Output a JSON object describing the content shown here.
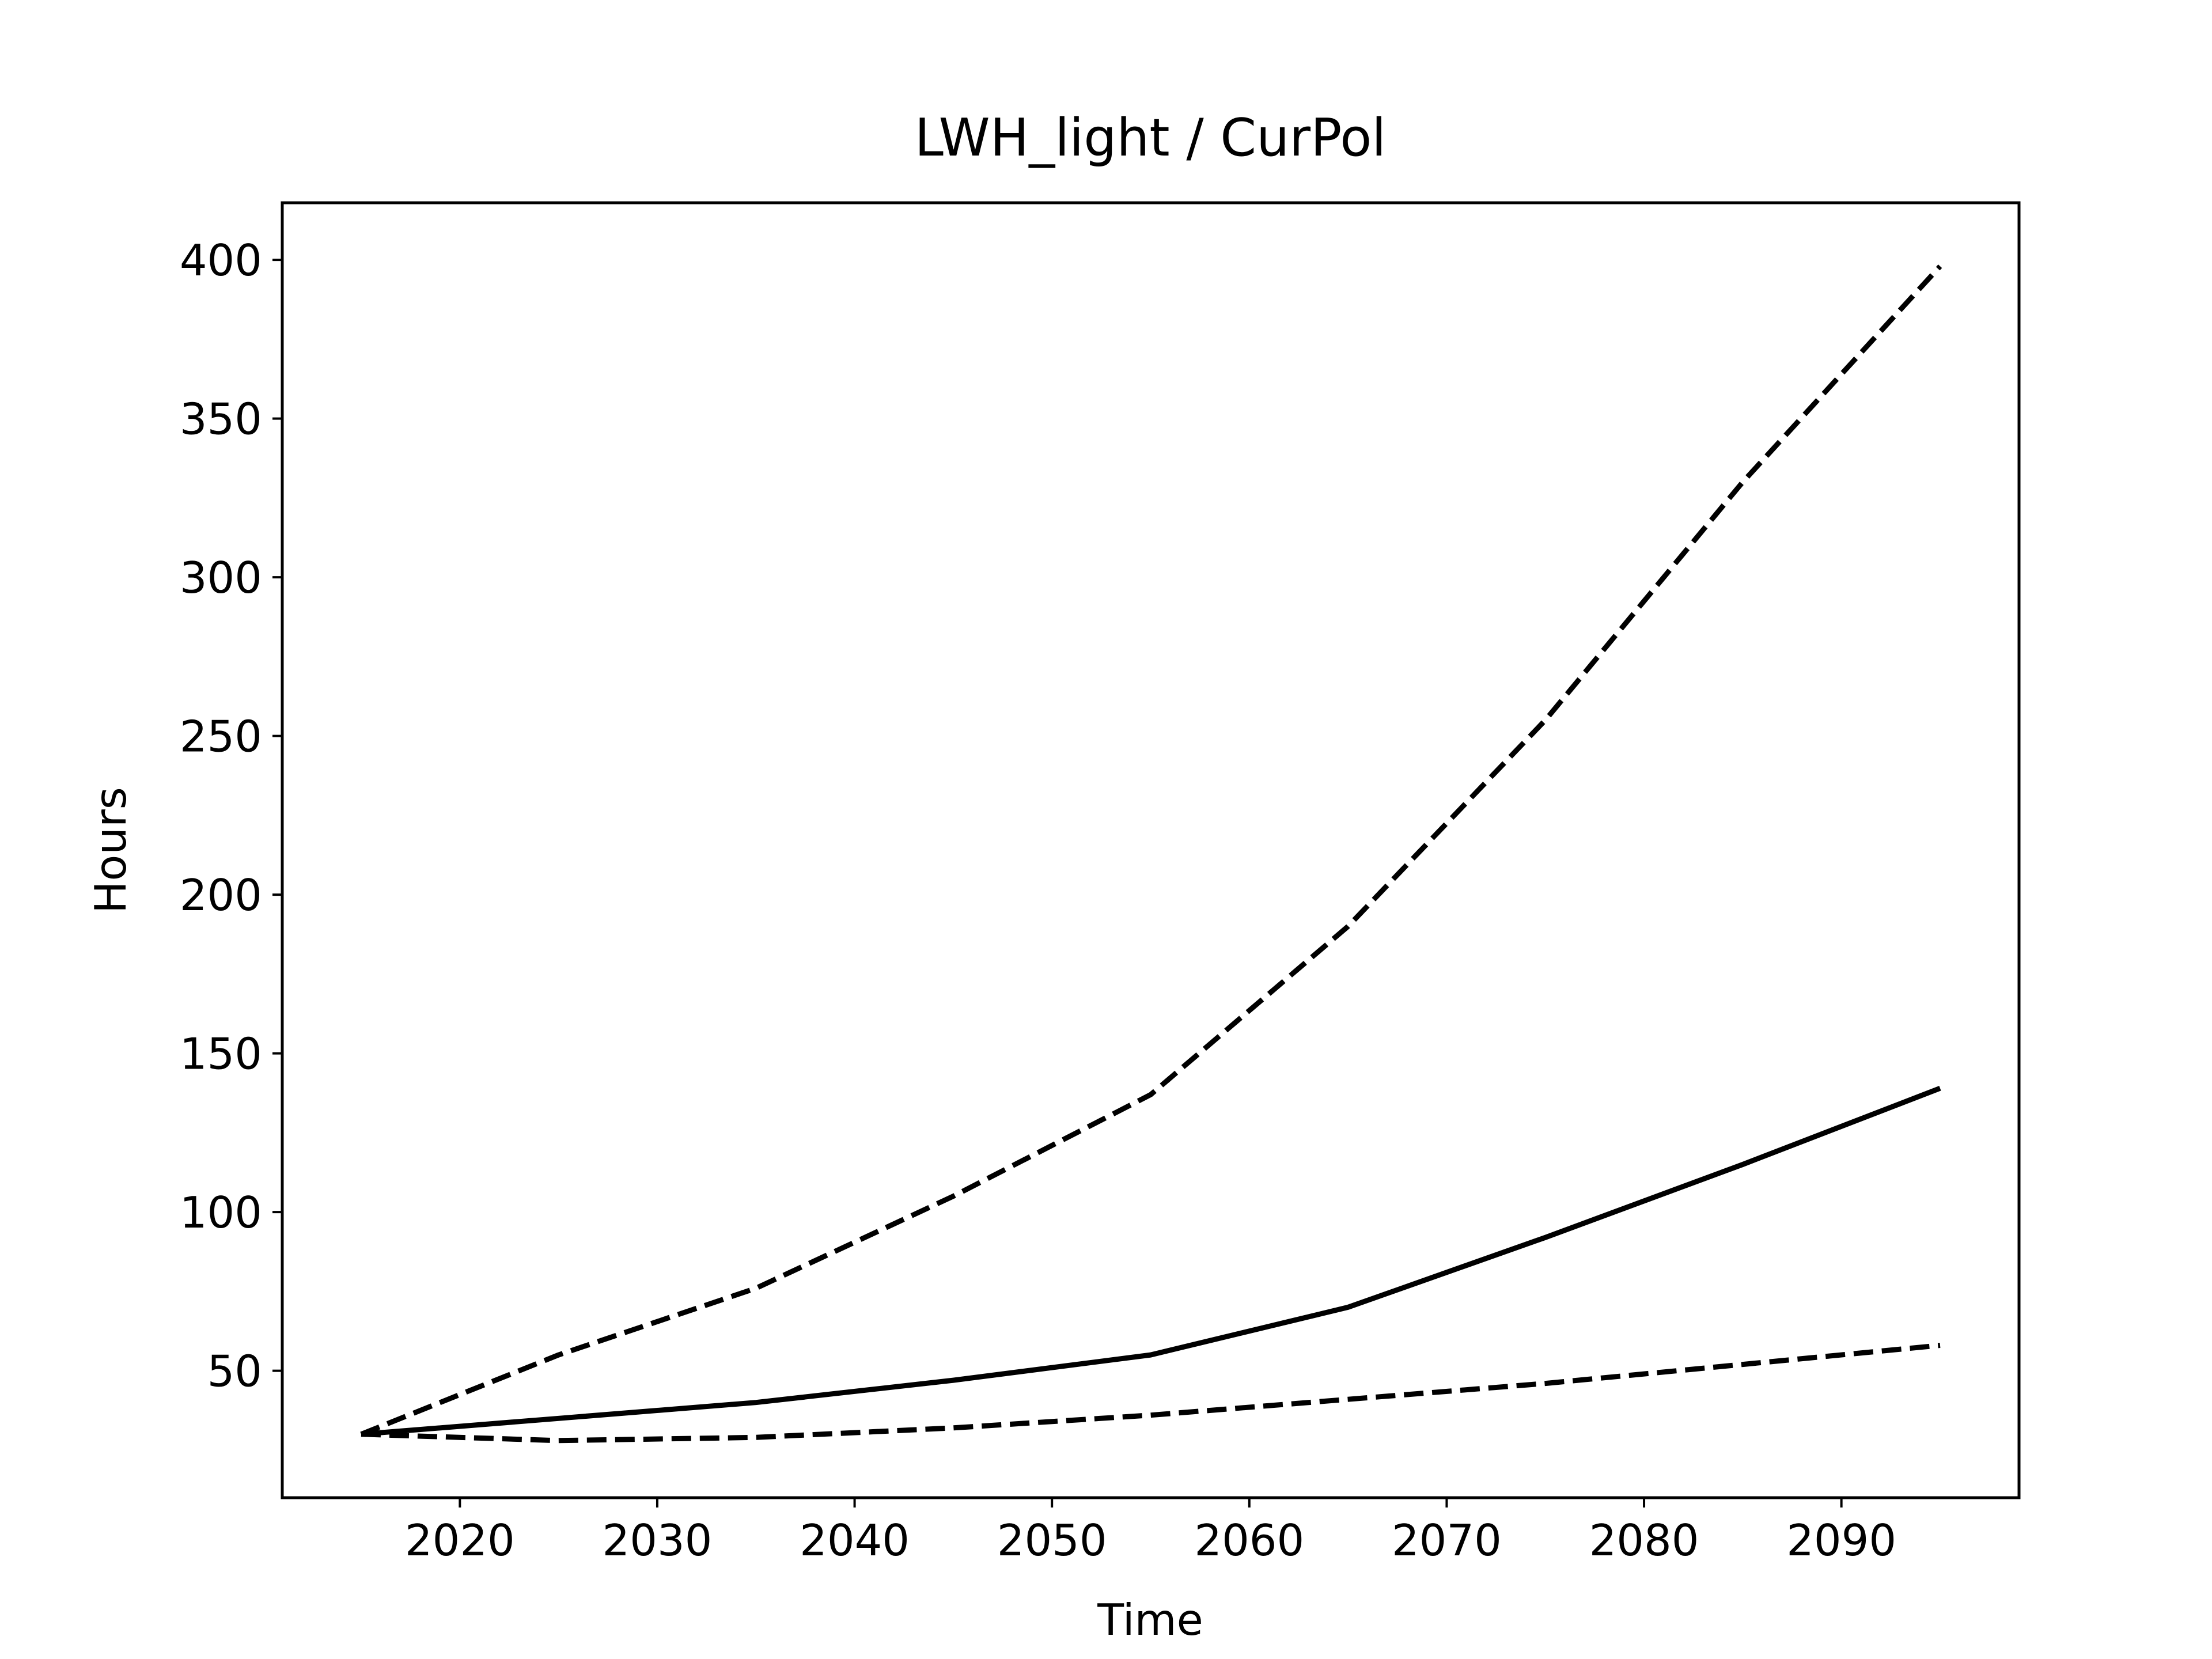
{
  "chart_data": {
    "type": "line",
    "title": "LWH_light / CurPol",
    "xlabel": "Time",
    "ylabel": "Hours",
    "xlim": [
      2011,
      2099
    ],
    "ylim": [
      10,
      418
    ],
    "x_ticks": [
      2020,
      2030,
      2040,
      2050,
      2060,
      2070,
      2080,
      2090
    ],
    "y_ticks": [
      50,
      100,
      150,
      200,
      250,
      300,
      350,
      400
    ],
    "x_tick_labels": [
      "2020",
      "2030",
      "2040",
      "2050",
      "2060",
      "2070",
      "2080",
      "2090"
    ],
    "y_tick_labels": [
      "50",
      "100",
      "150",
      "200",
      "250",
      "300",
      "350",
      "400"
    ],
    "grid": false,
    "legend": null,
    "series": [
      {
        "style": "dashed",
        "color": "#000000",
        "x": [
          2015,
          2025,
          2035,
          2045,
          2055,
          2065,
          2075,
          2085,
          2095
        ],
        "y": [
          30,
          55,
          76,
          105,
          137,
          190,
          255,
          330,
          398
        ]
      },
      {
        "style": "solid",
        "color": "#000000",
        "x": [
          2015,
          2025,
          2035,
          2045,
          2055,
          2065,
          2075,
          2085,
          2095
        ],
        "y": [
          30,
          35,
          40,
          47,
          55,
          70,
          92,
          115,
          139
        ]
      },
      {
        "style": "dashed",
        "color": "#000000",
        "x": [
          2015,
          2025,
          2035,
          2045,
          2055,
          2065,
          2075,
          2085,
          2095
        ],
        "y": [
          30,
          28,
          29,
          32,
          36,
          41,
          46,
          52,
          58
        ]
      }
    ]
  }
}
